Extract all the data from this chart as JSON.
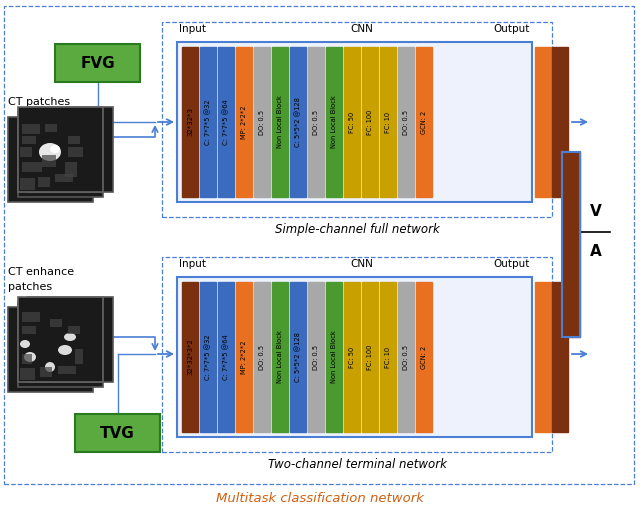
{
  "title": "Multitask classification network",
  "network1_label": "Simple-channel full network",
  "network2_label": "Two-channel terminal network",
  "fvg_label": "FVG",
  "tvg_label": "TVG",
  "ct_patches_label": "CT patches",
  "ct_enhance_label1": "CT enhance",
  "ct_enhance_label2": "patches",
  "net1_input": "32*32*3",
  "net2_input": "32*32*3*2",
  "layers": [
    {
      "label": "C: 7*7*5 @32",
      "color": "#3a6bbf"
    },
    {
      "label": "C: 7*7*5 @64",
      "color": "#3a6bbf"
    },
    {
      "label": "MP: 2*2*2",
      "color": "#e87020"
    },
    {
      "label": "DO: 0.5",
      "color": "#a8a8a8"
    },
    {
      "label": "Non Local Block",
      "color": "#4a9a30"
    },
    {
      "label": "C: 5*5*2 @128",
      "color": "#3a6bbf"
    },
    {
      "label": "DO: 0.5",
      "color": "#a8a8a8"
    },
    {
      "label": "Non Local Block",
      "color": "#4a9a30"
    },
    {
      "label": "FC: 50",
      "color": "#c8a000"
    },
    {
      "label": "FC: 100",
      "color": "#c8a000"
    },
    {
      "label": "FC: 10",
      "color": "#c8a000"
    },
    {
      "label": "DO: 0.5",
      "color": "#a8a8a8"
    },
    {
      "label": "GCN: 2",
      "color": "#e87020"
    }
  ],
  "input_bar_color": "#7b3010",
  "output_bar1_color": "#e87020",
  "output_bar2_color": "#7b3010",
  "combined_bar_color": "#7b3010",
  "bg_color": "#ffffff",
  "box_border_color": "#4a7fd4",
  "arrow_color": "#4a7fd4",
  "green_box_color": "#5aaa40",
  "v_label": "V",
  "a_label": "A"
}
